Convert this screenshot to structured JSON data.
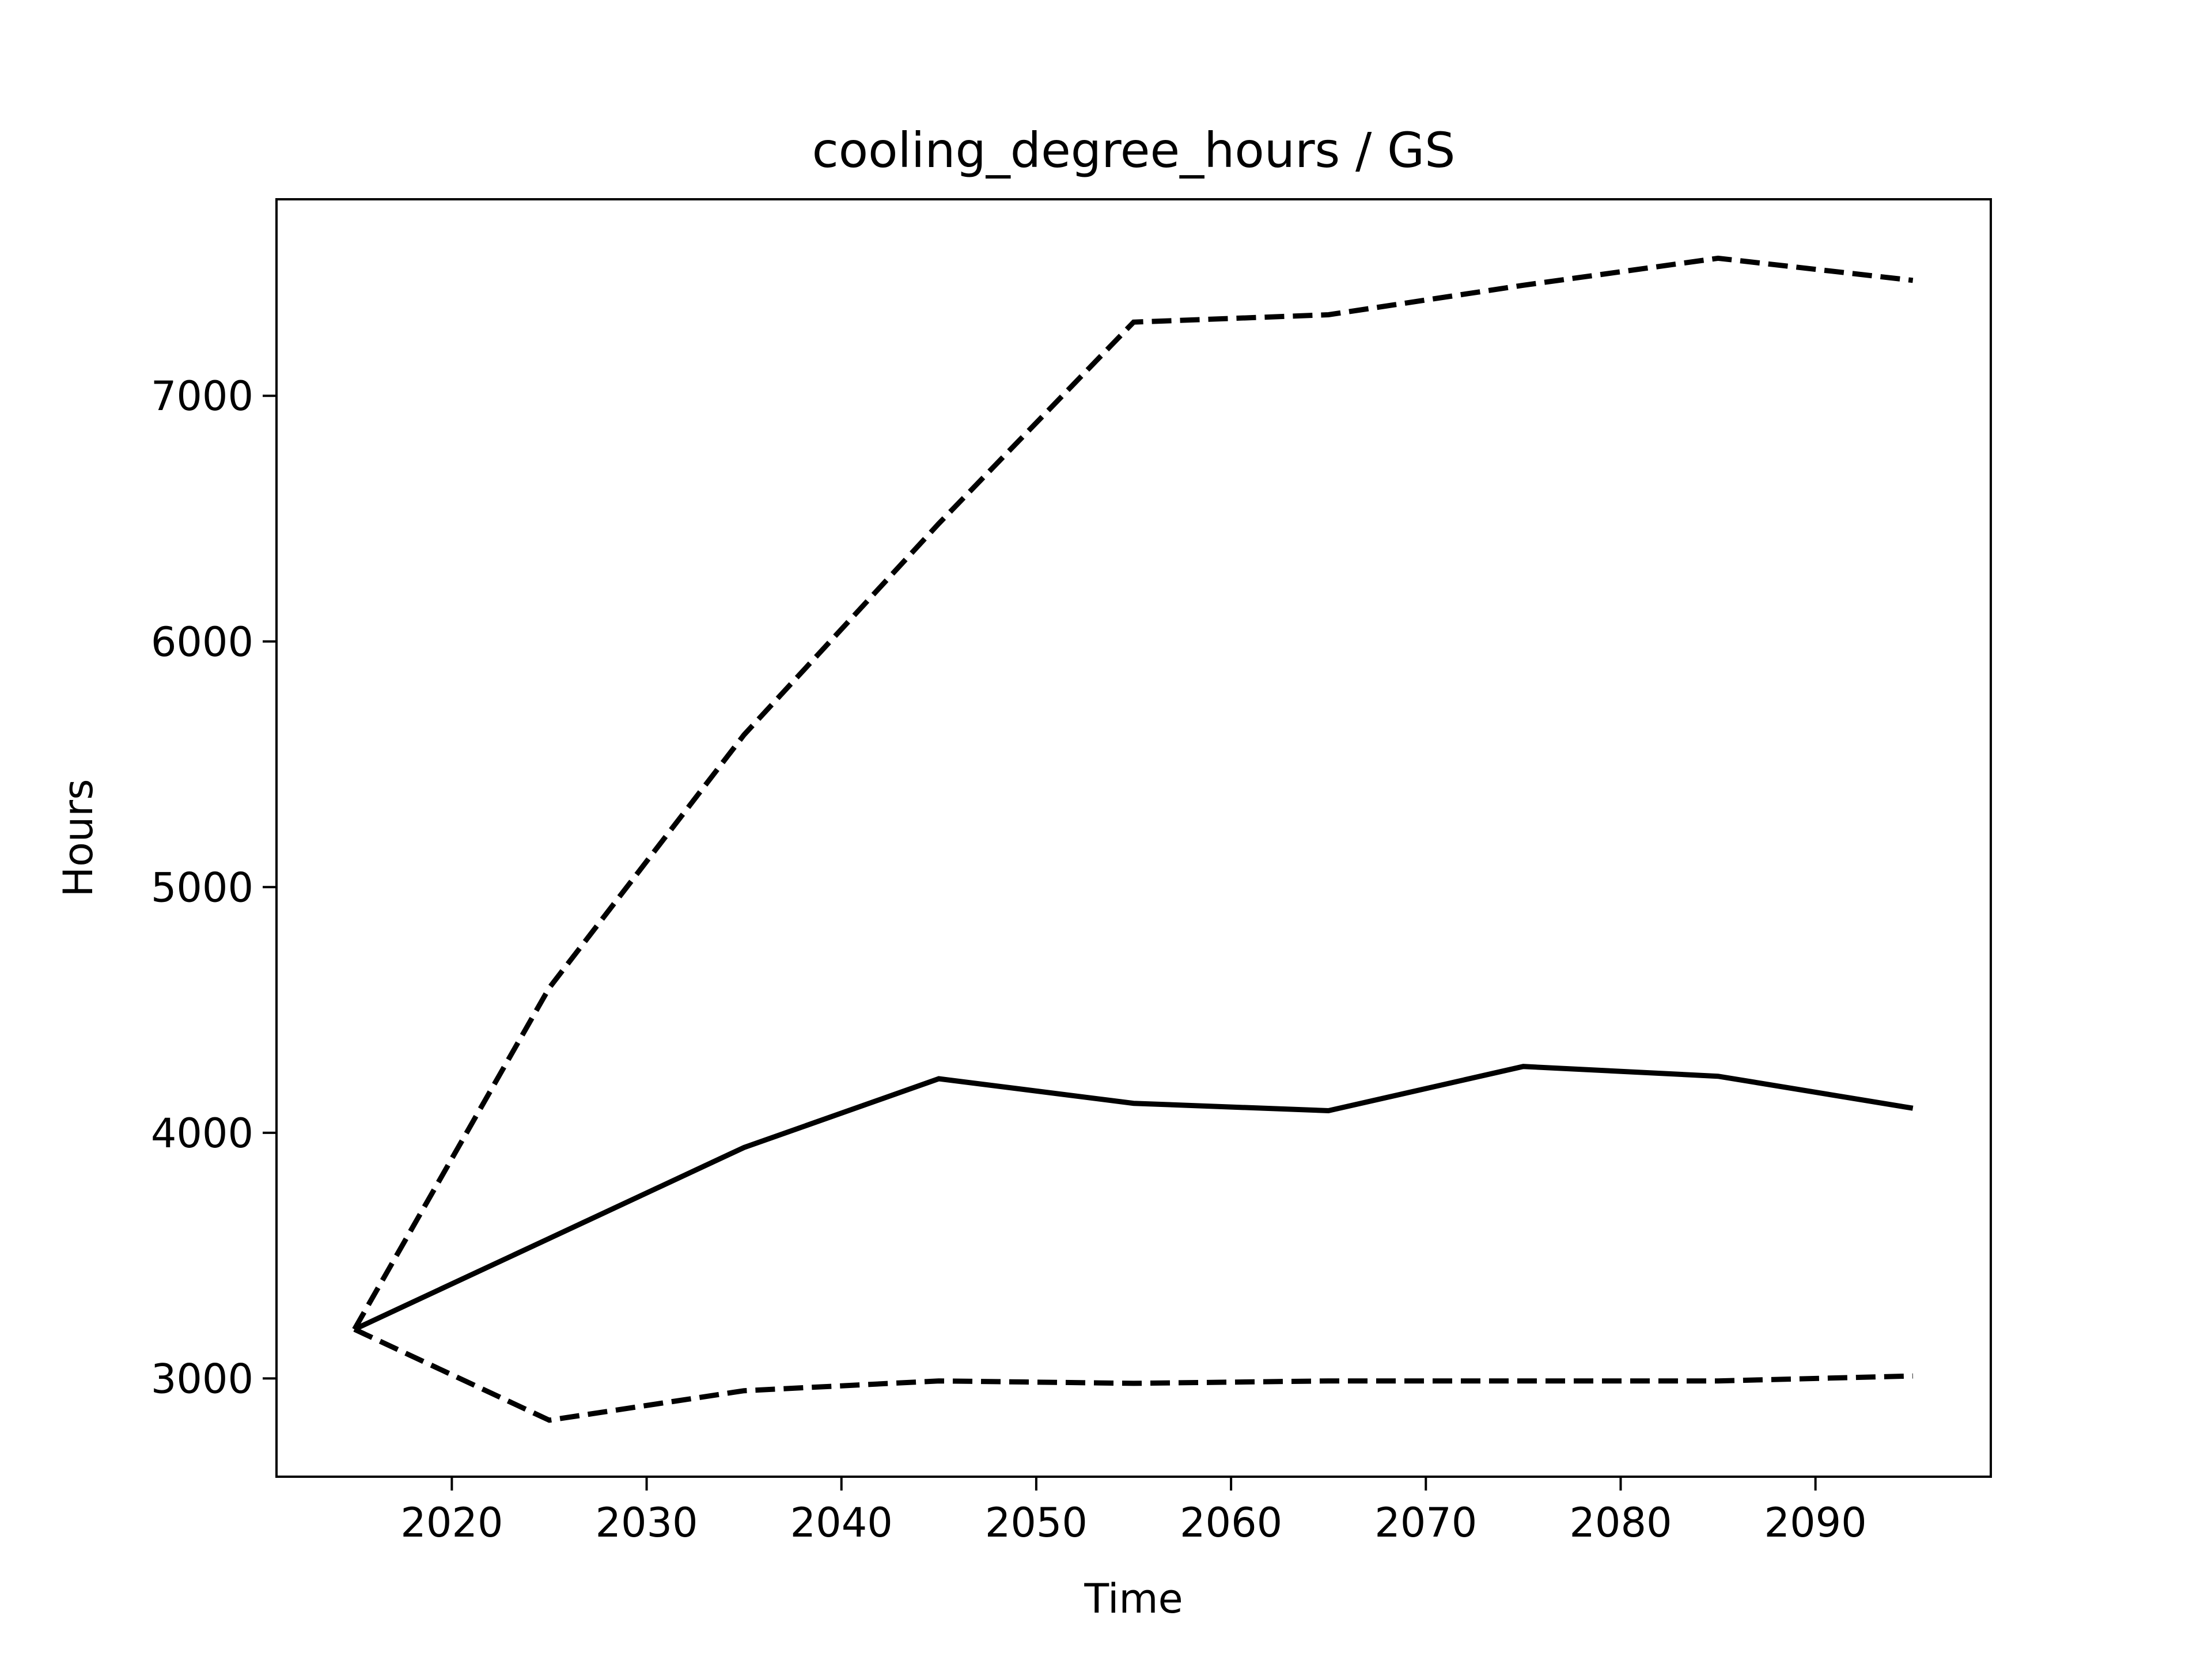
{
  "chart_data": {
    "type": "line",
    "title": "cooling_degree_hours / GS",
    "xlabel": "Time",
    "ylabel": "Hours",
    "xlim": [
      2011,
      2099
    ],
    "ylim": [
      2600,
      7800
    ],
    "xticks": [
      2020,
      2030,
      2040,
      2050,
      2060,
      2070,
      2080,
      2090
    ],
    "yticks": [
      3000,
      4000,
      5000,
      6000,
      7000
    ],
    "grid": false,
    "x": [
      2015,
      2025,
      2035,
      2045,
      2055,
      2065,
      2075,
      2085,
      2095
    ],
    "series": [
      {
        "style": "dashed",
        "color": "#000000",
        "values": [
          3200,
          4590,
          5620,
          6480,
          7300,
          7330,
          7450,
          7560,
          7470
        ]
      },
      {
        "style": "solid",
        "color": "#000000",
        "values": [
          3200,
          3570,
          3940,
          4220,
          4120,
          4090,
          4270,
          4230,
          4100
        ]
      },
      {
        "style": "dashed",
        "color": "#000000",
        "values": [
          3200,
          2830,
          2950,
          2990,
          2980,
          2990,
          2990,
          2990,
          3010
        ]
      }
    ]
  }
}
